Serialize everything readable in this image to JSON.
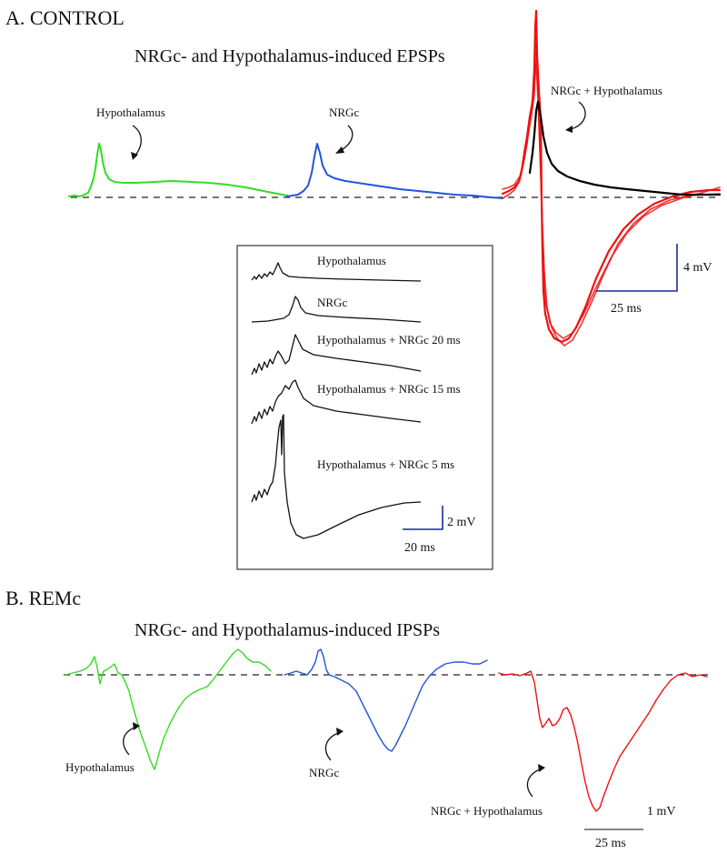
{
  "panel_a": {
    "label": "A.  CONTROL",
    "title": "NRGc- and Hypothalamus-induced EPSPs",
    "trace_labels": [
      "Hypothalamus",
      "NRGc",
      "NRGc + Hypothalamus"
    ],
    "scale_bar": {
      "voltage": "4 mV",
      "time": "25 ms"
    },
    "colors": {
      "hypothalamus": "#33dd22",
      "nrgc": "#2255dd",
      "combined": "#ee1111",
      "combined_overlay": "#000000"
    }
  },
  "inset": {
    "trace_labels": [
      "Hypothalamus",
      "NRGc",
      "Hypothalamus + NRGc 20 ms",
      "Hypothalamus + NRGc 15 ms",
      "Hypothalamus + NRGc 5 ms"
    ],
    "scale_bar": {
      "voltage": "2 mV",
      "time": "20 ms"
    },
    "colors": {
      "traces": "#111111",
      "scale_bar": "#1a2a9a"
    }
  },
  "panel_b": {
    "label": "B.  REMc",
    "title": "NRGc- and Hypothalamus-induced IPSPs",
    "trace_labels": [
      "Hypothalamus",
      "NRGc",
      "NRGc + Hypothalamus"
    ],
    "scale_bar": {
      "voltage": "1 mV",
      "time": "25 ms"
    },
    "colors": {
      "hypothalamus": "#33dd22",
      "nrgc": "#2255dd",
      "combined": "#ee1111"
    }
  }
}
